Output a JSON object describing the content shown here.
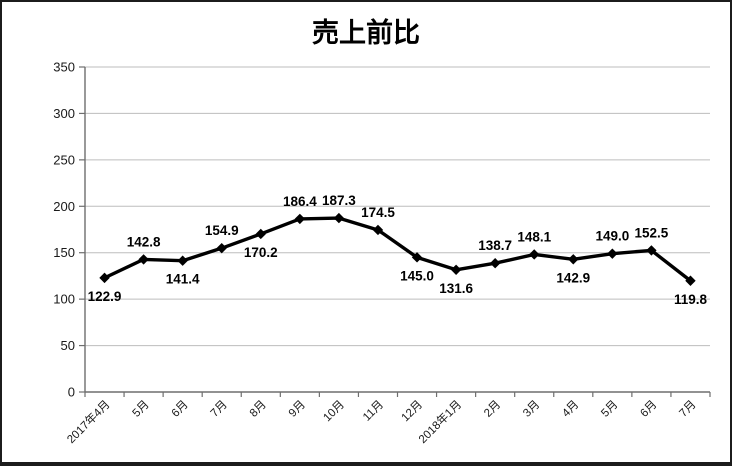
{
  "chart_data": {
    "type": "line",
    "title": "売上前比",
    "categories": [
      "2017年4月",
      "5月",
      "6月",
      "7月",
      "8月",
      "9月",
      "10月",
      "11月",
      "12月",
      "2018年1月",
      "2月",
      "3月",
      "4月",
      "5月",
      "6月",
      "7月"
    ],
    "values": [
      122.9,
      142.8,
      141.4,
      154.9,
      170.2,
      186.4,
      187.3,
      174.5,
      145.0,
      131.6,
      138.7,
      148.1,
      142.9,
      149.0,
      152.5,
      119.8
    ],
    "data_labels": [
      "122.9",
      "142.8",
      "141.4",
      "154.9",
      "170.2",
      "186.4",
      "187.3",
      "174.5",
      "145.0",
      "131.6",
      "138.7",
      "148.1",
      "142.9",
      "149.0",
      "152.5",
      "119.8"
    ],
    "label_positions": [
      "below",
      "above",
      "below",
      "above",
      "below",
      "above",
      "above",
      "above",
      "below",
      "below",
      "above",
      "above",
      "below",
      "above",
      "above",
      "below"
    ],
    "xlabel": "",
    "ylabel": "",
    "ylim": [
      0,
      350
    ],
    "yticks": [
      0,
      50,
      100,
      150,
      200,
      250,
      300,
      350
    ],
    "grid": true,
    "legend": "none",
    "marker": "diamond",
    "line_color": "#000000",
    "grid_color": "#bdbdbd",
    "axis_color": "#6e6e6e",
    "text_color": "#1a1a1a",
    "background_color": "#ffffff",
    "frame_color": "#1c1c1c"
  }
}
